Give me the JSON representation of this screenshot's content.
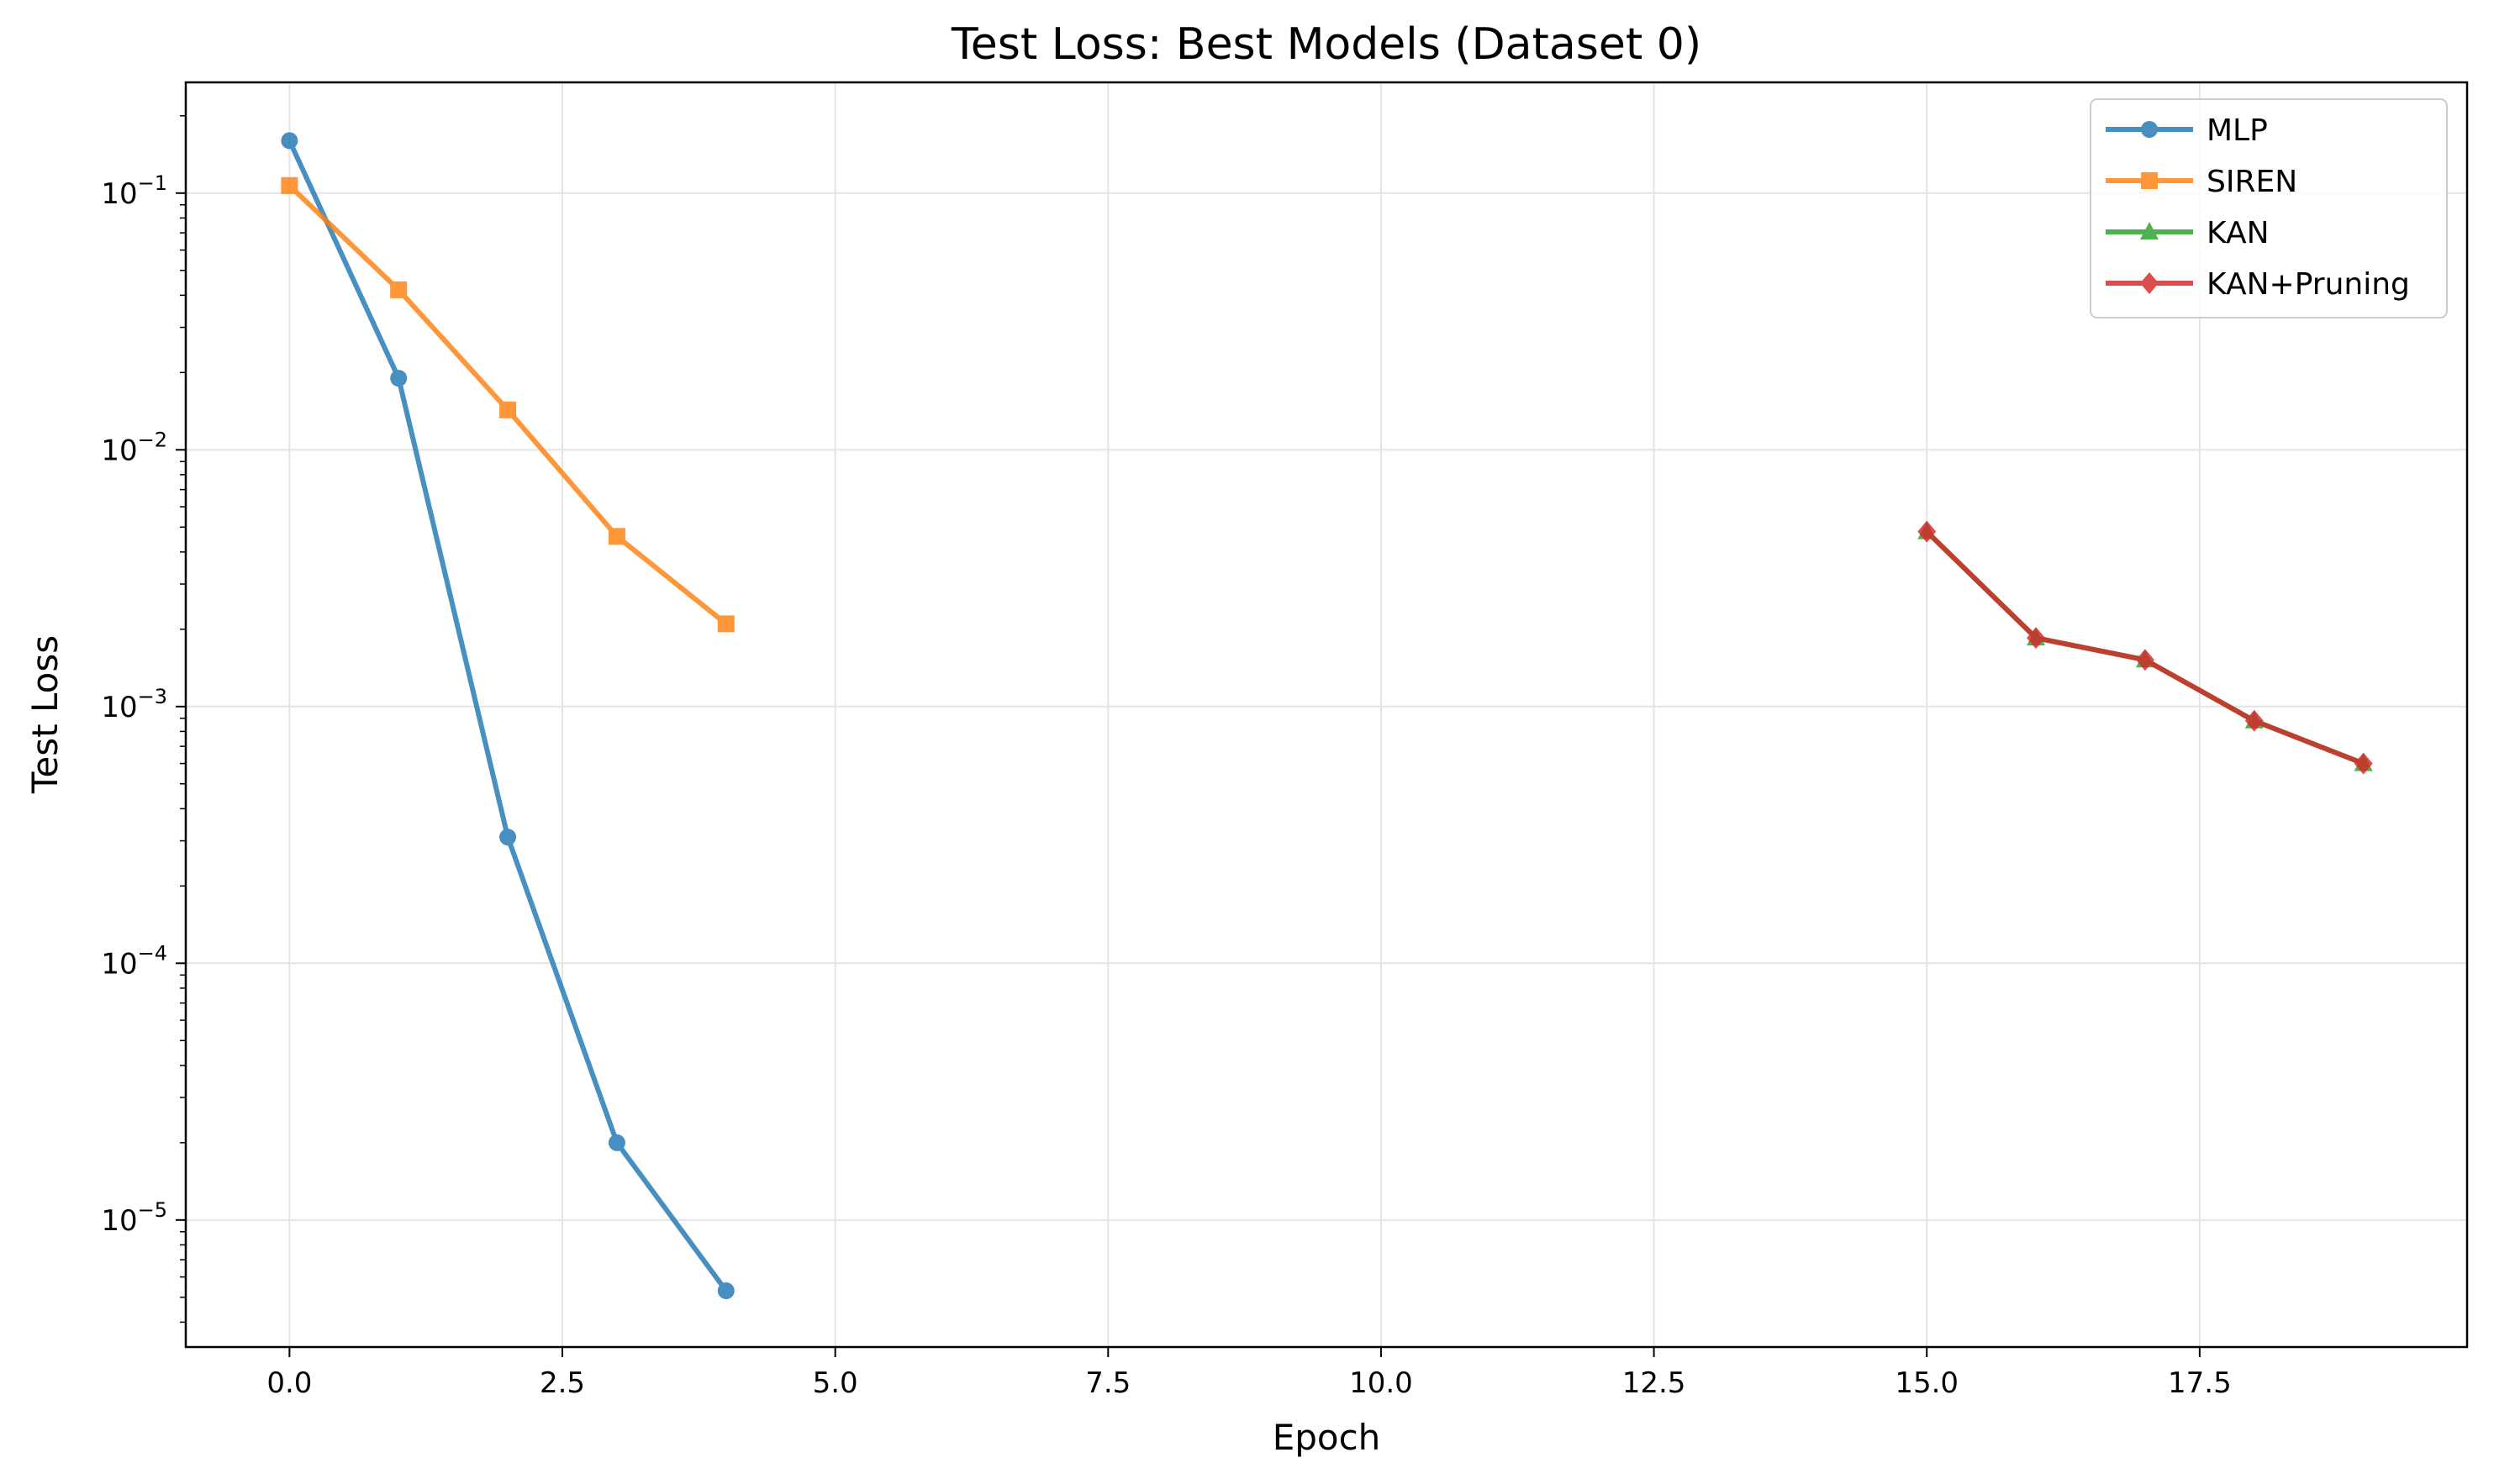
{
  "chart_data": {
    "type": "line",
    "title": "Test Loss: Best Models (Dataset 0)",
    "xlabel": "Epoch",
    "ylabel": "Test Loss",
    "yscale": "log",
    "xlim": [
      -0.95,
      19.95
    ],
    "ylim": [
      3.2e-06,
      0.27
    ],
    "xticks": [
      0,
      2.5,
      5,
      7.5,
      10,
      12.5,
      15,
      17.5
    ],
    "xtick_labels": [
      "0.0",
      "2.5",
      "5.0",
      "7.5",
      "10.0",
      "12.5",
      "15.0",
      "17.5"
    ],
    "yticks": [
      0.1,
      0.01,
      0.001,
      0.0001,
      1e-05
    ],
    "ytick_labels": [
      {
        "base": "10",
        "exp": "−1"
      },
      {
        "base": "10",
        "exp": "−2"
      },
      {
        "base": "10",
        "exp": "−3"
      },
      {
        "base": "10",
        "exp": "−4"
      },
      {
        "base": "10",
        "exp": "−5"
      }
    ],
    "grid": true,
    "legend_position": "top-right",
    "series": [
      {
        "name": "MLP",
        "color": "#1f77b4",
        "marker": "circle",
        "x": [
          0,
          1,
          2,
          3,
          4
        ],
        "y": [
          0.16,
          0.019,
          0.00031,
          2e-05,
          5.3e-06
        ]
      },
      {
        "name": "SIREN",
        "color": "#ff7f0e",
        "marker": "square",
        "x": [
          0,
          1,
          2,
          3,
          4
        ],
        "y": [
          0.107,
          0.042,
          0.0143,
          0.0046,
          0.0021
        ]
      },
      {
        "name": "KAN",
        "color": "#2ca02c",
        "marker": "triangle",
        "x": [
          15,
          16,
          17,
          18,
          19
        ],
        "y": [
          0.0048,
          0.00185,
          0.00152,
          0.00088,
          0.0006
        ]
      },
      {
        "name": "KAN+Pruning",
        "color": "#d62728",
        "marker": "diamond",
        "x": [
          15,
          16,
          17,
          18,
          19
        ],
        "y": [
          0.0048,
          0.00185,
          0.00152,
          0.00088,
          0.0006
        ]
      }
    ]
  }
}
